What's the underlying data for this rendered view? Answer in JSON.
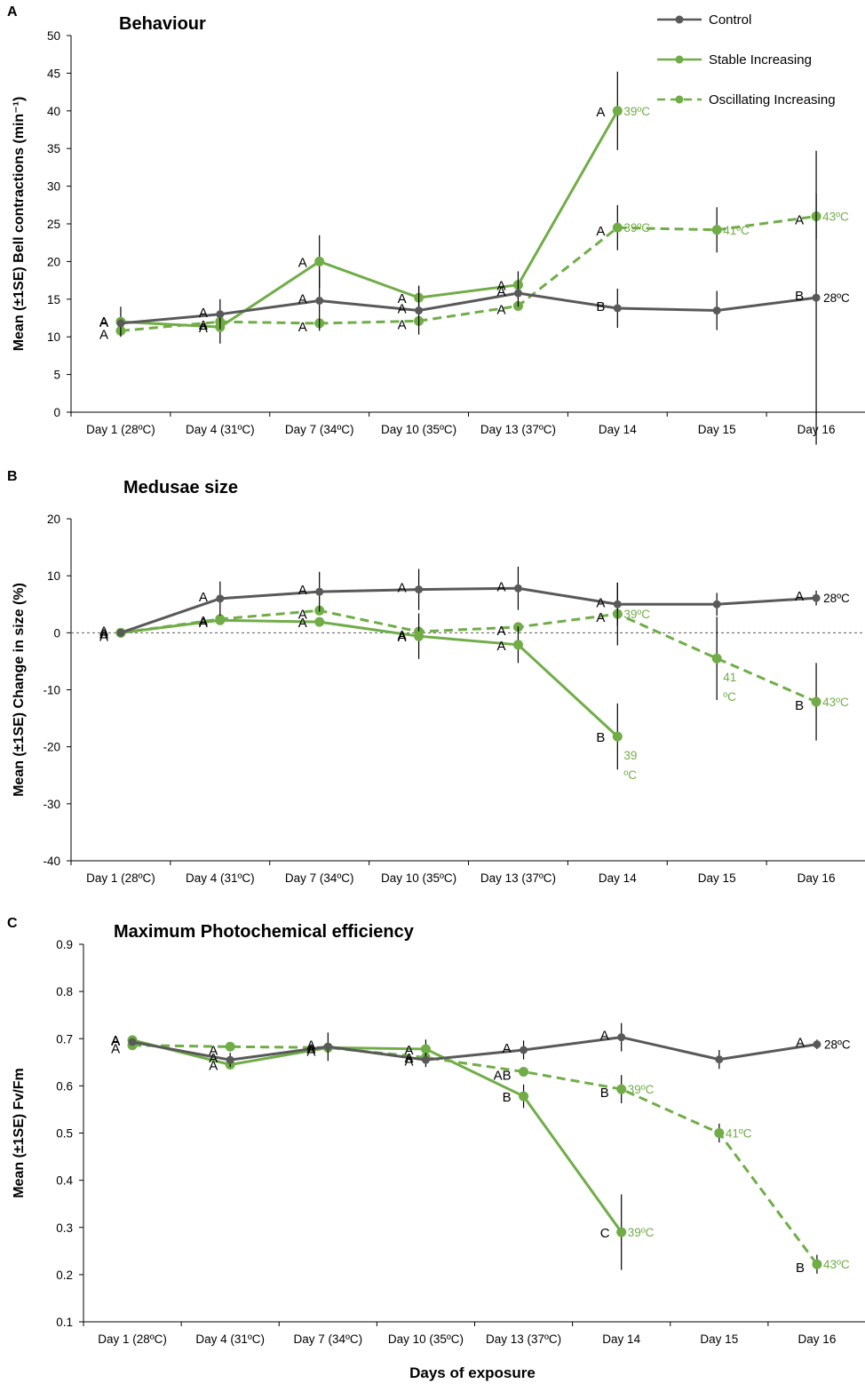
{
  "colors": {
    "control": "#595959",
    "treatment": "#70ad47",
    "axis": "#000000"
  },
  "legend": {
    "entries": [
      {
        "name": "Control",
        "key": "control"
      },
      {
        "name": "Stable Increasing",
        "key": "stable"
      },
      {
        "name": "Oscillating Increasing",
        "key": "oscillating"
      }
    ]
  },
  "xlabel": "Days of exposure",
  "chart_data": [
    {
      "type": "line",
      "panel": "A",
      "title": "Behaviour",
      "ylabel": "Mean (±1SE) Bell contractions (min⁻¹)",
      "ylim": [
        0,
        50
      ],
      "yticks": [
        "0",
        "5",
        "10",
        "15",
        "20",
        "25",
        "30",
        "35",
        "40",
        "45",
        "50"
      ],
      "categories": [
        "Day 1 (28ºC)",
        "Day 4 (31ºC)",
        "Day 7 (34ºC)",
        "Day 10 (35ºC)",
        "Day 13 (37ºC)",
        "Day 14",
        "Day 15",
        "Day 16"
      ],
      "series": [
        {
          "name": "Control",
          "key": "control",
          "values": [
            11.8,
            13.0,
            14.8,
            13.5,
            15.8,
            13.8,
            13.5,
            15.2
          ],
          "err": [
            0,
            2.0,
            4.0,
            3.2,
            1.8,
            2.6,
            2.6,
            19.5
          ],
          "sig": [
            "A",
            "A",
            "A",
            "A",
            "A",
            "B",
            "",
            "B"
          ],
          "end_label": "28ºC"
        },
        {
          "name": "Stable Increasing",
          "key": "stable",
          "values": [
            12.0,
            11.3,
            20.0,
            15.2,
            16.9,
            40.0,
            null,
            null
          ],
          "err": [
            2.0,
            2.2,
            3.5,
            1.6,
            1.8,
            5.2,
            0,
            0
          ],
          "sig": [
            "A",
            "A",
            "A",
            "A",
            "A",
            "A",
            "",
            ""
          ],
          "temps": [
            "",
            "",
            "",
            "",
            "",
            "39ºC",
            "",
            ""
          ]
        },
        {
          "name": "Oscillating Increasing",
          "key": "oscillating",
          "values": [
            10.8,
            12.0,
            11.8,
            12.1,
            14.1,
            24.5,
            24.2,
            26.0
          ],
          "err": [
            0,
            0,
            0,
            0,
            0,
            3.0,
            3.0,
            3.0
          ],
          "sig": [
            "A",
            "A",
            "A",
            "A",
            "A",
            "A",
            "",
            "A"
          ],
          "temps": [
            "",
            "",
            "",
            "",
            "",
            "39ºC",
            "41ºC",
            "43ºC"
          ]
        }
      ]
    },
    {
      "type": "line",
      "panel": "B",
      "title": "Medusae size",
      "ylabel": "Mean (±1SE) Change in size (%)",
      "ylim": [
        -40,
        20
      ],
      "yticks": [
        "-40",
        "-30",
        "-20",
        "-10",
        "0",
        "10",
        "20"
      ],
      "zero_line": true,
      "categories": [
        "Day 1 (28ºC)",
        "Day 4 (31ºC)",
        "Day 7 (34ºC)",
        "Day 10 (35ºC)",
        "Day 13 (37ºC)",
        "Day 14",
        "Day 15",
        "Day 16"
      ],
      "series": [
        {
          "name": "Control",
          "key": "control",
          "values": [
            0,
            6.0,
            7.2,
            7.6,
            7.8,
            5.0,
            5.0,
            6.1
          ],
          "err": [
            0,
            3.0,
            3.5,
            3.6,
            3.8,
            3.8,
            2.0,
            1.3
          ],
          "sig": [
            "A",
            "A",
            "A",
            "A",
            "A",
            "A",
            "",
            "A"
          ],
          "end_label": "28ºC"
        },
        {
          "name": "Stable Increasing",
          "key": "stable",
          "values": [
            0,
            2.2,
            1.9,
            -0.6,
            -2.1,
            -18.2,
            null,
            null
          ],
          "err": [
            0,
            0,
            0,
            4.0,
            3.2,
            5.8,
            0,
            0
          ],
          "sig": [
            "A",
            "A",
            "A",
            "A",
            "A",
            "B",
            "",
            ""
          ],
          "temps": [
            "",
            "",
            "",
            "",
            "",
            "39\nºC",
            "",
            ""
          ]
        },
        {
          "name": "Oscillating Increasing",
          "key": "oscillating",
          "values": [
            0,
            2.4,
            3.9,
            0.2,
            1.0,
            3.3,
            -4.5,
            -12.1
          ],
          "err": [
            0,
            0,
            0,
            0,
            0,
            5.5,
            7.3,
            6.8
          ],
          "sig": [
            "A",
            "A",
            "A",
            "A",
            "A",
            "A",
            "",
            "B"
          ],
          "temps": [
            "",
            "",
            "",
            "",
            "",
            "39ºC",
            "41\nºC",
            "43ºC"
          ]
        }
      ]
    },
    {
      "type": "line",
      "panel": "C",
      "title": "Maximum Photochemical efficiency",
      "ylabel": "Mean (±1SE)  Fv/Fm",
      "ylim": [
        0.1,
        0.9
      ],
      "yticks": [
        "0.1",
        "0.2",
        "0.3",
        "0.4",
        "0.5",
        "0.6",
        "0.7",
        "0.8",
        "0.9"
      ],
      "categories": [
        "Day 1 (28ºC)",
        "Day 4 (31ºC)",
        "Day 7 (34ºC)",
        "Day 10 (35ºC)",
        "Day 13 (37ºC)",
        "Day 14",
        "Day 15",
        "Day 16"
      ],
      "series": [
        {
          "name": "Control",
          "key": "control",
          "values": [
            0.693,
            0.655,
            0.683,
            0.655,
            0.676,
            0.703,
            0.656,
            0.688
          ],
          "err": [
            0,
            0.015,
            0.03,
            0.015,
            0.02,
            0.03,
            0.02,
            0.01
          ],
          "sig": [
            "A",
            "A",
            "A",
            "A",
            "A",
            "A",
            "",
            "A"
          ],
          "end_label": "28ºC"
        },
        {
          "name": "Stable Increasing",
          "key": "stable",
          "values": [
            0.697,
            0.645,
            0.681,
            0.678,
            0.578,
            0.29,
            null,
            null
          ],
          "err": [
            0,
            0,
            0,
            0.02,
            0.025,
            0.08,
            0,
            0
          ],
          "sig": [
            "A",
            "A",
            "A",
            "A",
            "B",
            "C",
            "",
            ""
          ],
          "temps": [
            "",
            "",
            "",
            "",
            "",
            "39ºC",
            "",
            ""
          ]
        },
        {
          "name": "Oscillating Increasing",
          "key": "oscillating",
          "values": [
            0.686,
            0.683,
            0.681,
            0.66,
            0.63,
            0.593,
            0.5,
            0.222
          ],
          "err": [
            0,
            0,
            0,
            0,
            0,
            0.03,
            0.02,
            0.02
          ],
          "sig": [
            "A",
            "A",
            "A",
            "A",
            "AB",
            "B",
            "",
            "B"
          ],
          "temps": [
            "",
            "",
            "",
            "",
            "",
            "39ºC",
            "41ºC",
            "43ºC"
          ]
        }
      ]
    }
  ]
}
